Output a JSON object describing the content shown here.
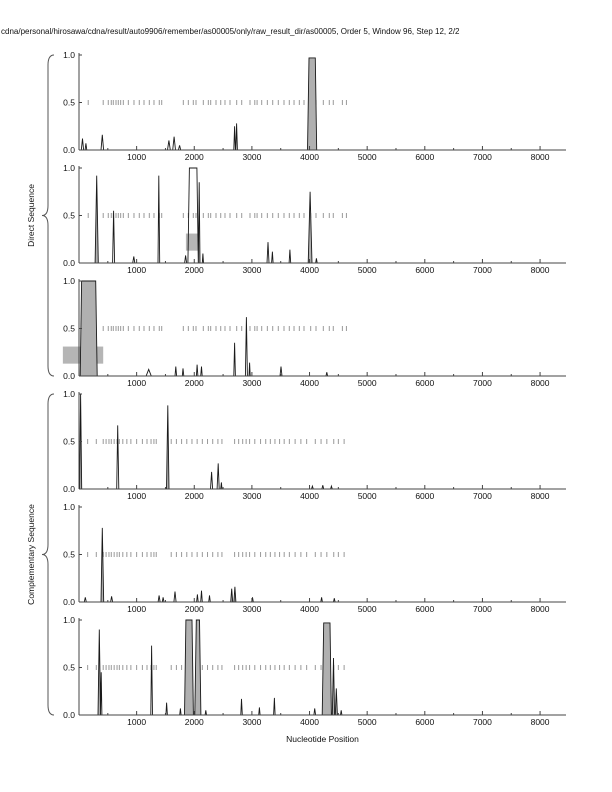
{
  "title": "cdna/personal/hirosawa/cdna/result/auto9906/remember/as00005/only/raw_result_dir/as00005, Order 5, Window 96, Step 12, 2/2",
  "chart_data": {
    "type": "line",
    "xlabel": "Nucleotide Position",
    "x_range": [
      0,
      8450
    ],
    "x_major_ticks": [
      1000,
      2000,
      3000,
      4000,
      5000,
      6000,
      7000,
      8000
    ],
    "x_minor_step": 500,
    "y_ticks": [
      0.0,
      0.5,
      1.0
    ],
    "y_tick_labels": [
      "0.0",
      "0.5",
      "1.0"
    ],
    "ylim": [
      0,
      1
    ],
    "marker_level": 0.5,
    "grid": false,
    "legend": "none",
    "group_labels": {
      "direct": "Direct Sequence",
      "complementary": "Complementary Sequence"
    },
    "colors": {
      "curve": "#1a1a1a",
      "curve_fill": "#b0b0b0",
      "marker": "#999999",
      "box": "#b5b5b5",
      "axis": "#444444"
    },
    "marker_sets": {
      "direct": [
        160,
        420,
        508,
        560,
        595,
        642,
        682,
        723,
        769,
        856,
        954,
        1046,
        1128,
        1220,
        1301,
        1393,
        1435,
        1810,
        1897,
        1983,
        2030,
        2157,
        2244,
        2285,
        2377,
        2459,
        2533,
        2620,
        2736,
        2823,
        2967,
        3050,
        3090,
        3170,
        3268,
        3361,
        3458,
        3557,
        3649,
        3731,
        3823,
        3904,
        4020,
        4112,
        4239,
        4343,
        4412,
        4570,
        4640
      ],
      "complementary": [
        150,
        300,
        420,
        470,
        520,
        560,
        610,
        660,
        700,
        760,
        830,
        900,
        1000,
        1100,
        1180,
        1250,
        1300,
        1340,
        1600,
        1690,
        1780,
        1870,
        1960,
        2050,
        2140,
        2230,
        2320,
        2410,
        2480,
        2700,
        2770,
        2840,
        2900,
        2960,
        3050,
        3150,
        3240,
        3320,
        3400,
        3480,
        3560,
        3650,
        3750,
        3850,
        3950,
        4100,
        4200,
        4300,
        4420,
        4500,
        4600
      ]
    },
    "panels": [
      {
        "group": "direct",
        "peaks": [
          {
            "x": 60,
            "h": 0.12,
            "w": 40
          },
          {
            "x": 120,
            "h": 0.07,
            "w": 30
          },
          {
            "x": 405,
            "h": 0.16,
            "w": 45
          },
          {
            "x": 1560,
            "h": 0.1,
            "w": 50
          },
          {
            "x": 1650,
            "h": 0.14,
            "w": 50
          },
          {
            "x": 1745,
            "h": 0.05,
            "w": 40
          },
          {
            "x": 2700,
            "h": 0.25,
            "w": 28
          },
          {
            "x": 2735,
            "h": 0.28,
            "w": 28
          }
        ],
        "plateaus": [
          {
            "x1": 3990,
            "x2": 4100,
            "h": 0.97,
            "fill": true
          }
        ],
        "boxes": []
      },
      {
        "group": "direct",
        "peaks": [
          {
            "x": 307,
            "h": 0.92,
            "w": 55,
            "fill": true
          },
          {
            "x": 600,
            "h": 0.55,
            "w": 35
          },
          {
            "x": 950,
            "h": 0.07,
            "w": 35
          },
          {
            "x": 1385,
            "h": 0.92,
            "w": 30
          },
          {
            "x": 1850,
            "h": 0.08,
            "w": 35
          },
          {
            "x": 2085,
            "h": 0.85,
            "w": 30,
            "fill": true
          },
          {
            "x": 2150,
            "h": 0.1,
            "w": 22
          },
          {
            "x": 3280,
            "h": 0.22,
            "w": 35
          },
          {
            "x": 3355,
            "h": 0.12,
            "w": 25
          },
          {
            "x": 3660,
            "h": 0.14,
            "w": 28
          },
          {
            "x": 4010,
            "h": 0.75,
            "w": 65,
            "fill": true
          },
          {
            "x": 4120,
            "h": 0.05,
            "w": 25
          }
        ],
        "plateaus": [
          {
            "x1": 1915,
            "x2": 2045,
            "h": 1.0
          }
        ],
        "boxes": [
          {
            "x1": 1855,
            "x2": 2075,
            "v1": 0.13,
            "v2": 0.31
          }
        ]
      },
      {
        "group": "direct",
        "peaks": [
          {
            "x": 1210,
            "h": 0.07,
            "w": 90
          },
          {
            "x": 1680,
            "h": 0.1,
            "w": 28
          },
          {
            "x": 1805,
            "h": 0.08,
            "w": 26
          },
          {
            "x": 2050,
            "h": 0.12,
            "w": 26
          },
          {
            "x": 2125,
            "h": 0.1,
            "w": 26
          },
          {
            "x": 2700,
            "h": 0.35,
            "w": 28
          },
          {
            "x": 2905,
            "h": 0.62,
            "w": 34
          },
          {
            "x": 2960,
            "h": 0.14,
            "w": 20
          },
          {
            "x": 3505,
            "h": 0.1,
            "w": 36
          },
          {
            "x": 4300,
            "h": 0.04,
            "w": 28
          }
        ],
        "plateaus": [
          {
            "x1": 45,
            "x2": 290,
            "h": 1.0,
            "fill": true
          }
        ],
        "boxes": [
          {
            "x1": -280,
            "x2": 420,
            "v1": 0.13,
            "v2": 0.31
          }
        ]
      },
      {
        "group": "complementary",
        "peaks": [
          {
            "x": 28,
            "h": 1.0,
            "w": 36,
            "fill": true
          },
          {
            "x": 672,
            "h": 0.67,
            "w": 36
          },
          {
            "x": 1540,
            "h": 0.88,
            "w": 44,
            "fill": true
          },
          {
            "x": 2300,
            "h": 0.18,
            "w": 36
          },
          {
            "x": 2415,
            "h": 0.27,
            "w": 36
          },
          {
            "x": 2470,
            "h": 0.07,
            "w": 24
          },
          {
            "x": 4050,
            "h": 0.03,
            "w": 30
          },
          {
            "x": 4230,
            "h": 0.04,
            "w": 30
          },
          {
            "x": 4380,
            "h": 0.03,
            "w": 30
          }
        ],
        "plateaus": [],
        "boxes": []
      },
      {
        "group": "complementary",
        "peaks": [
          {
            "x": 110,
            "h": 0.05,
            "w": 35
          },
          {
            "x": 405,
            "h": 0.78,
            "w": 48,
            "fill": true
          },
          {
            "x": 565,
            "h": 0.06,
            "w": 35
          },
          {
            "x": 1390,
            "h": 0.07,
            "w": 35
          },
          {
            "x": 1460,
            "h": 0.05,
            "w": 28
          },
          {
            "x": 1665,
            "h": 0.11,
            "w": 38
          },
          {
            "x": 2055,
            "h": 0.08,
            "w": 28
          },
          {
            "x": 2125,
            "h": 0.12,
            "w": 28
          },
          {
            "x": 2265,
            "h": 0.07,
            "w": 28
          },
          {
            "x": 2650,
            "h": 0.14,
            "w": 34,
            "fill": true
          },
          {
            "x": 2705,
            "h": 0.16,
            "w": 34,
            "fill": true
          },
          {
            "x": 3010,
            "h": 0.05,
            "w": 28
          },
          {
            "x": 4210,
            "h": 0.05,
            "w": 28
          },
          {
            "x": 4430,
            "h": 0.04,
            "w": 28
          }
        ],
        "plateaus": [],
        "boxes": []
      },
      {
        "group": "complementary",
        "peaks": [
          {
            "x": 352,
            "h": 0.9,
            "w": 46,
            "fill": true
          },
          {
            "x": 385,
            "h": 0.45,
            "w": 24
          },
          {
            "x": 1260,
            "h": 0.73,
            "w": 30
          },
          {
            "x": 1520,
            "h": 0.13,
            "w": 26
          },
          {
            "x": 1760,
            "h": 0.07,
            "w": 24
          },
          {
            "x": 2200,
            "h": 0.05,
            "w": 24
          },
          {
            "x": 2820,
            "h": 0.17,
            "w": 26
          },
          {
            "x": 3130,
            "h": 0.08,
            "w": 24
          },
          {
            "x": 3390,
            "h": 0.18,
            "w": 26
          },
          {
            "x": 4090,
            "h": 0.07,
            "w": 30
          },
          {
            "x": 4415,
            "h": 0.6,
            "w": 40,
            "fill": true
          },
          {
            "x": 4465,
            "h": 0.28,
            "w": 36,
            "fill": true
          },
          {
            "x": 4550,
            "h": 0.05,
            "w": 24
          }
        ],
        "plateaus": [
          {
            "x1": 1855,
            "x2": 1960,
            "h": 1.0,
            "fill": true
          },
          {
            "x1": 2035,
            "x2": 2090,
            "h": 1.0,
            "fill": true
          },
          {
            "x1": 4245,
            "x2": 4355,
            "h": 0.97,
            "fill": true
          }
        ],
        "boxes": []
      }
    ]
  }
}
